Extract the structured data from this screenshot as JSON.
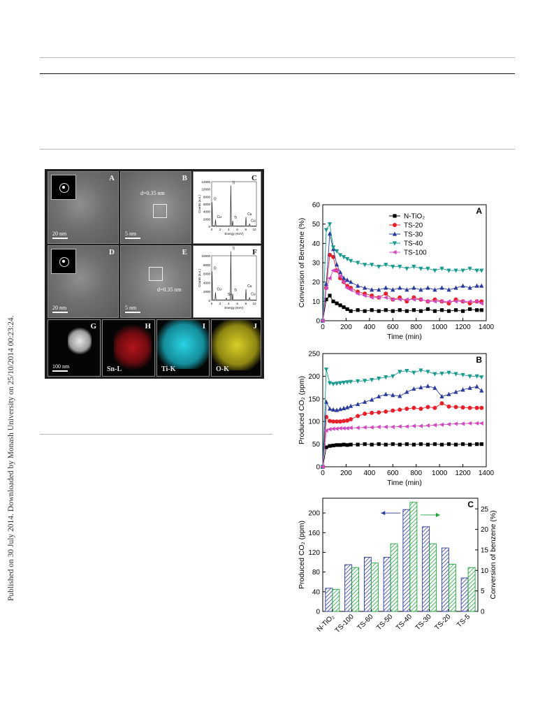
{
  "page": {
    "side_note": "Published on 30 July 2014. Downloaded by Monash University on 25/10/2014 00:23:24."
  },
  "micrographs": {
    "panels": [
      {
        "id": "A",
        "scale": "20 nm"
      },
      {
        "id": "B",
        "scale": "5 nm",
        "annotation": "d=0.35 nm"
      },
      {
        "id": "C"
      },
      {
        "id": "D",
        "scale": "20 nm"
      },
      {
        "id": "E",
        "scale": "5 nm",
        "annotation": "d=0.35 nm"
      },
      {
        "id": "F"
      },
      {
        "id": "G",
        "scale": "100 nm"
      },
      {
        "id": "H",
        "label": "Sn-L"
      },
      {
        "id": "I",
        "label": "Ti-K"
      },
      {
        "id": "J",
        "label": "O-K"
      }
    ],
    "eds": {
      "xlabel": "Energy (KeV)",
      "ylabel": "Counts (a.u.)",
      "xticks": [
        "0",
        "2",
        "4",
        "6",
        "8",
        "10"
      ],
      "peaks_c": [
        "O",
        "Cu",
        "Ti",
        "Ti",
        "Cu",
        "Cu"
      ],
      "peaks_f": [
        "O",
        "Cu",
        "Sn",
        "Ti",
        "Ti",
        "Cu",
        "Cu"
      ],
      "yticks_c": [
        "0",
        "2000",
        "4000",
        "6000",
        "8000",
        "10000",
        "12000"
      ],
      "yticks_f": [
        "0",
        "2000",
        "4000",
        "6000",
        "8000",
        "10000"
      ],
      "colors": {
        "map_sn": "#c0181c",
        "map_ti": "#1cc7d8",
        "map_o": "#c9c21b"
      }
    }
  },
  "chart_data": [
    {
      "type": "line",
      "panel": "A",
      "xlabel": "Time (min)",
      "ylabel": "Conversion of Benzene (%)",
      "xlim": [
        0,
        1400
      ],
      "ylim": [
        0,
        60
      ],
      "xticks": [
        0,
        200,
        400,
        600,
        800,
        1000,
        1200,
        1400
      ],
      "yticks": [
        0,
        10,
        20,
        30,
        40,
        50,
        60
      ],
      "legend_position": "top-right",
      "series": [
        {
          "name": "N-TiO2",
          "color": "#000000",
          "marker": "square",
          "x": [
            0,
            30,
            60,
            90,
            120,
            150,
            180,
            210,
            240,
            300,
            360,
            420,
            480,
            540,
            600,
            660,
            720,
            780,
            840,
            900,
            960,
            1020,
            1080,
            1140,
            1200,
            1260,
            1320,
            1360
          ],
          "y": [
            0,
            11,
            13,
            10,
            9,
            8,
            7,
            6,
            5,
            5.5,
            5,
            5.5,
            5,
            5.5,
            5,
            5.5,
            5,
            5.5,
            5,
            6,
            5,
            5.5,
            5,
            5.5,
            5,
            6,
            5.5,
            5.5
          ]
        },
        {
          "name": "TS-20",
          "color": "#e8202a",
          "marker": "circle",
          "x": [
            0,
            30,
            60,
            90,
            120,
            150,
            180,
            210,
            240,
            300,
            360,
            420,
            480,
            540,
            600,
            660,
            720,
            780,
            840,
            900,
            960,
            1020,
            1080,
            1140,
            1200,
            1260,
            1320,
            1360
          ],
          "y": [
            0,
            17,
            34,
            33,
            26,
            22,
            20,
            18,
            17,
            15,
            14,
            13,
            12,
            14,
            11,
            12,
            10,
            12,
            11,
            10,
            11,
            10,
            9,
            11,
            10,
            9,
            10,
            10
          ]
        },
        {
          "name": "TS-30",
          "color": "#2b3b9b",
          "marker": "triangle-up",
          "x": [
            0,
            30,
            60,
            90,
            120,
            150,
            180,
            210,
            240,
            300,
            360,
            420,
            480,
            540,
            600,
            660,
            720,
            780,
            840,
            900,
            960,
            1020,
            1080,
            1140,
            1200,
            1260,
            1320,
            1360
          ],
          "y": [
            0,
            19,
            45,
            37,
            29,
            25,
            22,
            21,
            20,
            18,
            17,
            16,
            16,
            17,
            16,
            17,
            16,
            17,
            16,
            17,
            16,
            17,
            16,
            17,
            18,
            17,
            18,
            18
          ]
        },
        {
          "name": "TS-40",
          "color": "#1b9b8f",
          "marker": "triangle-down",
          "x": [
            0,
            30,
            60,
            90,
            120,
            150,
            180,
            210,
            240,
            300,
            360,
            420,
            480,
            540,
            600,
            660,
            720,
            780,
            840,
            900,
            960,
            1020,
            1080,
            1140,
            1200,
            1260,
            1320,
            1360
          ],
          "y": [
            0,
            47,
            50,
            38,
            36,
            34,
            33,
            32,
            31,
            30,
            29,
            29,
            28,
            29,
            28,
            28,
            27,
            28,
            27,
            27,
            26,
            27,
            26,
            26,
            26,
            27,
            26,
            26
          ]
        },
        {
          "name": "TS-100",
          "color": "#d24ac1",
          "marker": "triangle-left",
          "x": [
            0,
            30,
            60,
            90,
            120,
            150,
            180,
            210,
            240,
            300,
            360,
            420,
            480,
            540,
            600,
            660,
            720,
            780,
            840,
            900,
            960,
            1020,
            1080,
            1140,
            1200,
            1260,
            1320,
            1360
          ],
          "y": [
            0,
            17,
            22,
            26,
            26,
            23,
            20,
            17,
            16,
            14,
            13,
            12,
            12,
            12,
            11,
            11,
            11,
            11,
            11,
            10,
            10,
            10,
            10,
            10,
            10,
            10,
            10,
            9
          ]
        }
      ]
    },
    {
      "type": "line",
      "panel": "B",
      "xlabel": "Time (min)",
      "ylabel": "Produced CO2 (ppm)",
      "xlim": [
        0,
        1400
      ],
      "ylim": [
        0,
        250
      ],
      "xticks": [
        0,
        200,
        400,
        600,
        800,
        1000,
        1200,
        1400
      ],
      "yticks": [
        0,
        50,
        100,
        150,
        200,
        250
      ],
      "series": [
        {
          "color": "#000000",
          "marker": "square",
          "x": [
            0,
            30,
            60,
            90,
            120,
            150,
            180,
            210,
            240,
            300,
            360,
            420,
            480,
            540,
            600,
            660,
            720,
            780,
            840,
            900,
            960,
            1020,
            1080,
            1140,
            1200,
            1260,
            1320,
            1360
          ],
          "y": [
            0,
            43,
            46,
            47,
            48,
            48,
            49,
            48,
            49,
            49,
            50,
            49,
            50,
            49,
            50,
            49,
            50,
            49,
            50,
            49,
            50,
            49,
            50,
            49,
            50,
            49,
            50,
            50
          ]
        },
        {
          "color": "#e8202a",
          "marker": "circle",
          "x": [
            0,
            30,
            60,
            90,
            120,
            150,
            180,
            210,
            240,
            300,
            360,
            420,
            480,
            540,
            600,
            660,
            720,
            780,
            840,
            900,
            960,
            1020,
            1080,
            1140,
            1200,
            1260,
            1320,
            1360
          ],
          "y": [
            0,
            110,
            101,
            100,
            100,
            100,
            101,
            102,
            105,
            112,
            117,
            119,
            120,
            122,
            124,
            126,
            128,
            130,
            128,
            132,
            130,
            140,
            133,
            132,
            131,
            130,
            130,
            130
          ]
        },
        {
          "color": "#2b3b9b",
          "marker": "triangle-up",
          "x": [
            0,
            30,
            60,
            90,
            120,
            150,
            180,
            210,
            240,
            300,
            360,
            420,
            480,
            540,
            600,
            660,
            720,
            780,
            840,
            900,
            960,
            1020,
            1080,
            1140,
            1200,
            1260,
            1320,
            1360
          ],
          "y": [
            0,
            143,
            128,
            126,
            125,
            127,
            129,
            131,
            134,
            138,
            143,
            148,
            155,
            160,
            158,
            156,
            165,
            172,
            175,
            178,
            174,
            155,
            160,
            165,
            170,
            174,
            177,
            168
          ]
        },
        {
          "color": "#1b9b8f",
          "marker": "triangle-down",
          "x": [
            0,
            30,
            60,
            90,
            120,
            150,
            180,
            210,
            240,
            300,
            360,
            420,
            480,
            540,
            600,
            660,
            720,
            780,
            840,
            900,
            960,
            1020,
            1080,
            1140,
            1200,
            1260,
            1320,
            1360
          ],
          "y": [
            0,
            215,
            185,
            183,
            184,
            185,
            186,
            187,
            188,
            189,
            190,
            192,
            195,
            198,
            200,
            210,
            212,
            208,
            213,
            210,
            205,
            206,
            208,
            205,
            203,
            200,
            200,
            198
          ]
        },
        {
          "color": "#d24ac1",
          "marker": "triangle-left",
          "x": [
            0,
            30,
            60,
            90,
            120,
            150,
            180,
            210,
            240,
            300,
            360,
            420,
            480,
            540,
            600,
            660,
            720,
            780,
            840,
            900,
            960,
            1020,
            1080,
            1140,
            1200,
            1260,
            1320,
            1360
          ],
          "y": [
            0,
            80,
            83,
            84,
            84,
            85,
            85,
            85,
            86,
            86,
            87,
            87,
            88,
            88,
            88,
            89,
            89,
            90,
            90,
            91,
            92,
            93,
            94,
            95,
            95,
            96,
            96,
            96
          ]
        }
      ]
    },
    {
      "type": "bar",
      "panel": "C",
      "categories": [
        "N-TiO2",
        "TS-100",
        "TS-60",
        "TS-50",
        "TS-40",
        "TS-30",
        "TS-20",
        "TS-5"
      ],
      "ylabel": "Produced CO2 (ppm)",
      "ylabel_right": "Conversion of benzene  (%)",
      "ylim": [
        0,
        230
      ],
      "ylim_right": [
        0,
        27.6
      ],
      "yticks": [
        0,
        40,
        80,
        120,
        160,
        200
      ],
      "yticks_right": [
        0,
        5,
        10,
        15,
        20,
        25
      ],
      "series": [
        {
          "color": "#2b3b9b",
          "fill": "hatch",
          "axis": "left",
          "values": [
            47,
            95,
            110,
            110,
            207,
            172,
            129,
            68
          ]
        },
        {
          "color": "#1fa23e",
          "fill": "hatch",
          "axis": "right",
          "values": [
            5.4,
            10.7,
            11.8,
            16.5,
            26.6,
            16.5,
            11.5,
            10.7
          ]
        }
      ]
    }
  ]
}
